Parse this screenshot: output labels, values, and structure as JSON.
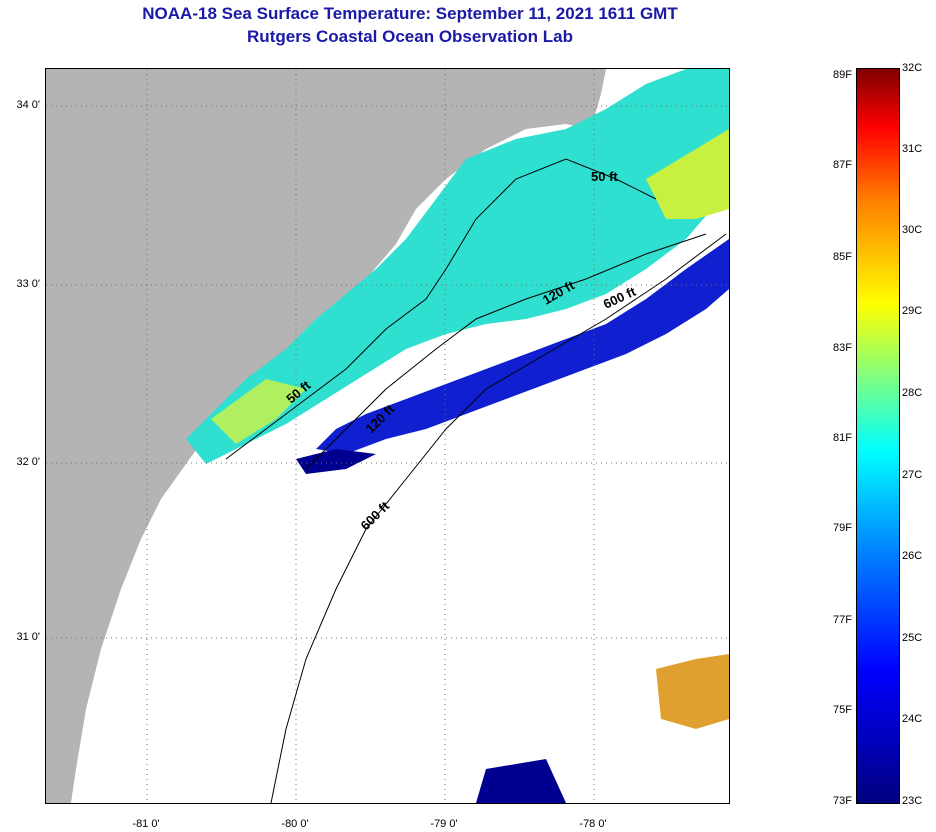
{
  "title": {
    "line1": "NOAA-18 Sea Surface Temperature:  September 11, 2021 1611 GMT",
    "line2": "Rutgers Coastal Ocean Observation Lab"
  },
  "map": {
    "latitude_labels": [
      "34 0'",
      "33 0'",
      "32 0'",
      "31 0'"
    ],
    "longitude_labels": [
      "-81 0'",
      "-80 0'",
      "-79 0'",
      "-78 0'"
    ],
    "contour_labels": [
      "50 ft",
      "120 ft",
      "600 ft",
      "50 ft",
      "120 ft",
      "600 ft"
    ],
    "colors": {
      "land": "#b4b4b4",
      "cloud": "#ffffff",
      "coastline": "#000000"
    }
  },
  "colorbar": {
    "fahrenheit_labels": [
      "89F",
      "87F",
      "85F",
      "83F",
      "81F",
      "79F",
      "77F",
      "75F",
      "73F"
    ],
    "celsius_labels": [
      "32C",
      "31C",
      "30C",
      "29C",
      "28C",
      "27C",
      "26C",
      "25C",
      "24C",
      "23C"
    ]
  }
}
